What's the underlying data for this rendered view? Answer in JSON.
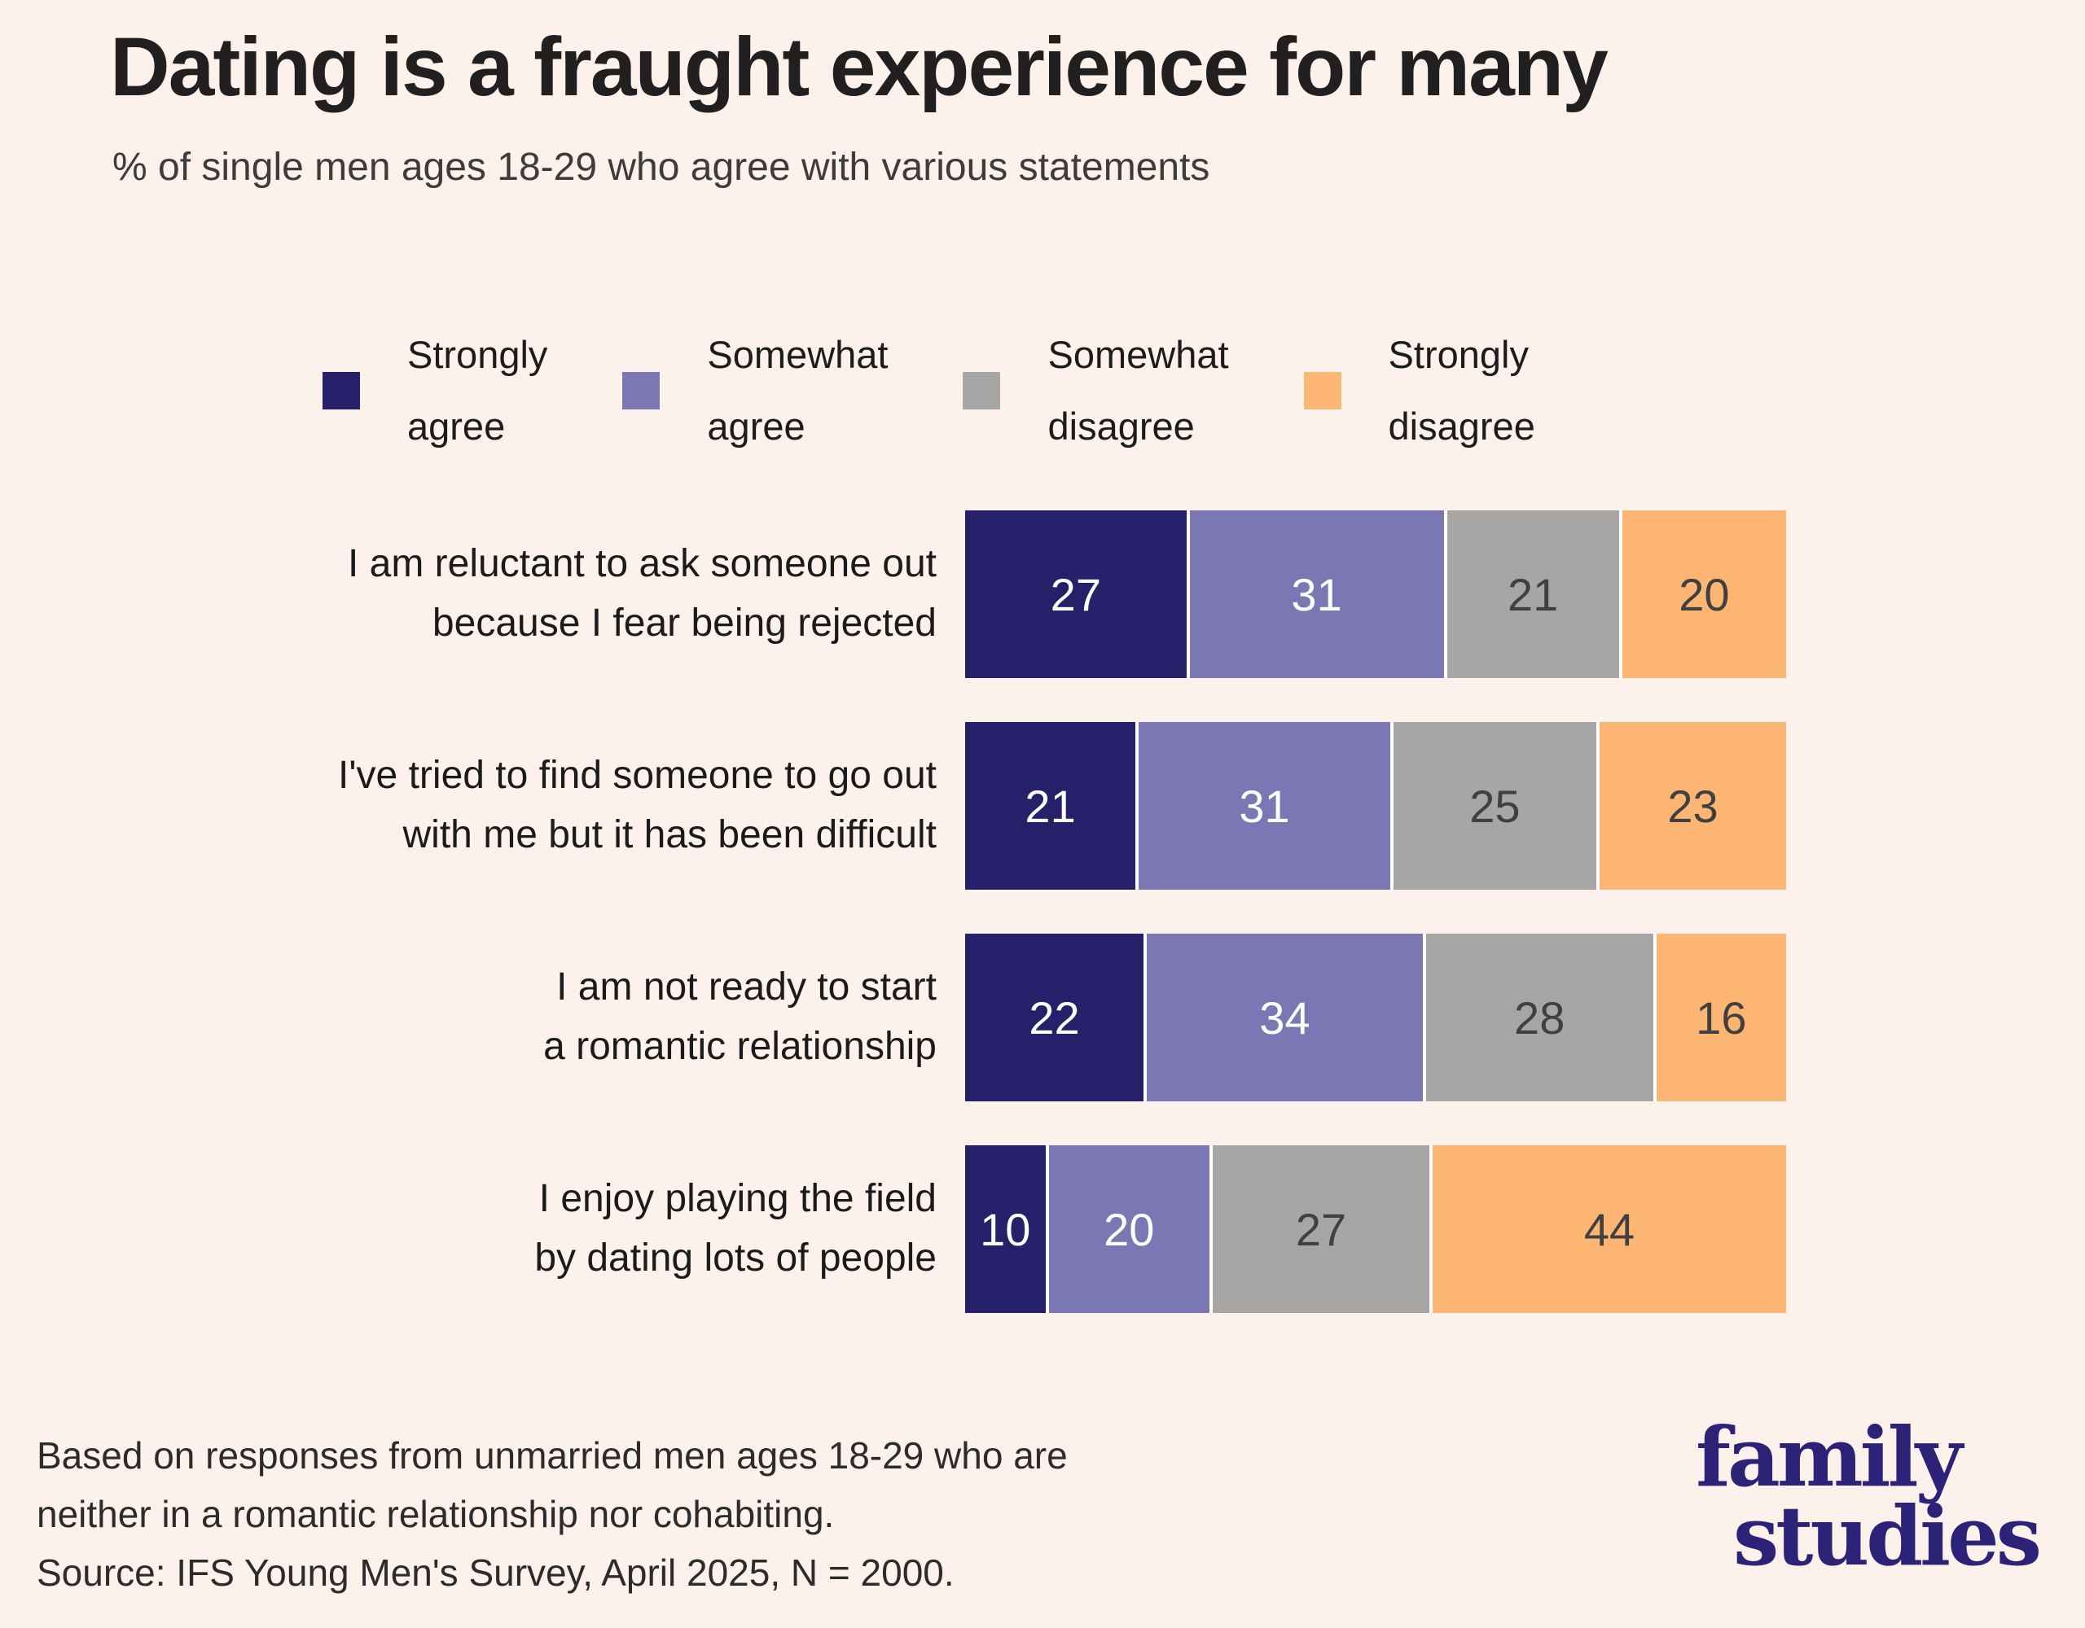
{
  "title": "Dating is a fraught experience for many",
  "subtitle": "% of single men ages 18-29 who agree with various statements",
  "colors": {
    "background": "#fcf1eb",
    "strongly_agree": "#26206b",
    "somewhat_agree": "#7b76b4",
    "somewhat_disagree": "#a8a5a5",
    "strongly_disagree": "#fcb573",
    "separator": "#ffffff",
    "value_on_dark": "#ffffff",
    "value_on_light": "#414040",
    "logo": "#2c2277"
  },
  "legend": [
    {
      "label": "Strongly\nagree",
      "color": "#26206b",
      "text_color": "#ffffff"
    },
    {
      "label": "Somewhat\nagree",
      "color": "#7b76b4",
      "text_color": "#ffffff"
    },
    {
      "label": "Somewhat\ndisagree",
      "color": "#a8a5a5",
      "text_color": "#414040"
    },
    {
      "label": "Strongly\ndisagree",
      "color": "#fcb573",
      "text_color": "#414040"
    }
  ],
  "rows": [
    {
      "label_lines": [
        "I am reluctant to ask someone out",
        "because I fear being rejected"
      ],
      "values": [
        27,
        31,
        21,
        20
      ]
    },
    {
      "label_lines": [
        "I've tried to find someone to go out",
        "with me but it has been difficult"
      ],
      "values": [
        21,
        31,
        25,
        23
      ]
    },
    {
      "label_lines": [
        "I am not ready to start",
        "a romantic relationship"
      ],
      "values": [
        22,
        34,
        28,
        16
      ]
    },
    {
      "label_lines": [
        "I enjoy playing the field",
        "by dating lots of people"
      ],
      "values": [
        10,
        20,
        27,
        44
      ]
    }
  ],
  "chart_data": {
    "type": "bar",
    "orientation": "horizontal",
    "stacked": true,
    "title": "Dating is a fraught experience for many",
    "subtitle": "% of single men ages 18-29 who agree with various statements",
    "categories": [
      "I am reluctant to ask someone out because I fear being rejected",
      "I've tried to find someone to go out with me but it has been difficult",
      "I am not ready to start a romantic relationship",
      "I enjoy playing the field by dating lots of people"
    ],
    "series": [
      {
        "name": "Strongly agree",
        "values": [
          27,
          21,
          22,
          10
        ]
      },
      {
        "name": "Somewhat agree",
        "values": [
          31,
          31,
          34,
          20
        ]
      },
      {
        "name": "Somewhat disagree",
        "values": [
          21,
          25,
          28,
          27
        ]
      },
      {
        "name": "Strongly disagree",
        "values": [
          20,
          23,
          16,
          44
        ]
      }
    ],
    "value_unit": "percent",
    "xlim": [
      0,
      100
    ],
    "grid": false,
    "legend_position": "top",
    "data_labels": true
  },
  "footnote": {
    "line1": "Based on responses from unmarried men ages 18-29 who are",
    "line2": "neither in a romantic relationship nor cohabiting.",
    "line3": "Source: IFS Young Men's Survey, April 2025, N = 2000."
  },
  "logo": {
    "line1": "family",
    "line2": "studies"
  }
}
